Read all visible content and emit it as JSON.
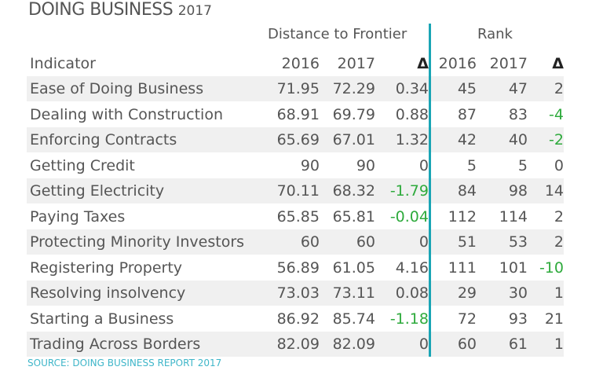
{
  "title": {
    "main": "DOING BUSINESS",
    "year": "2017"
  },
  "groups": {
    "dtf": "Distance to Frontier",
    "rank": "Rank"
  },
  "header": {
    "indicator": "Indicator",
    "dtf_2016": "2016",
    "dtf_2017": "2017",
    "dtf_delta": "Δ",
    "rank_2016": "2016",
    "rank_2017": "2017",
    "rank_delta": "Δ"
  },
  "colors": {
    "divider": "#1aa5b5",
    "negative": "#2eaa3c",
    "source": "#3fb6c9",
    "row_alt": "#f0f0f0"
  },
  "source": "SOURCE: DOING BUSINESS REPORT 2017",
  "chart_data": {
    "type": "table",
    "columns": [
      "Indicator",
      "DTF 2016",
      "DTF 2017",
      "DTF Δ",
      "Rank 2016",
      "Rank 2017",
      "Rank Δ"
    ],
    "rows": [
      {
        "indicator": "Ease of Doing Business",
        "dtf_2016": "71.95",
        "dtf_2017": "72.29",
        "dtf_delta": "0.34",
        "rank_2016": "45",
        "rank_2017": "47",
        "rank_delta": "2"
      },
      {
        "indicator": "Dealing with Construction",
        "dtf_2016": "68.91",
        "dtf_2017": "69.79",
        "dtf_delta": "0.88",
        "rank_2016": "87",
        "rank_2017": "83",
        "rank_delta": "-4"
      },
      {
        "indicator": "Enforcing Contracts",
        "dtf_2016": "65.69",
        "dtf_2017": "67.01",
        "dtf_delta": "1.32",
        "rank_2016": "42",
        "rank_2017": "40",
        "rank_delta": "-2"
      },
      {
        "indicator": "Getting Credit",
        "dtf_2016": "90",
        "dtf_2017": "90",
        "dtf_delta": "0",
        "rank_2016": "5",
        "rank_2017": "5",
        "rank_delta": "0"
      },
      {
        "indicator": "Getting Electricity",
        "dtf_2016": "70.11",
        "dtf_2017": "68.32",
        "dtf_delta": "-1.79",
        "rank_2016": "84",
        "rank_2017": "98",
        "rank_delta": "14"
      },
      {
        "indicator": "Paying Taxes",
        "dtf_2016": "65.85",
        "dtf_2017": "65.81",
        "dtf_delta": "-0.04",
        "rank_2016": "112",
        "rank_2017": "114",
        "rank_delta": "2"
      },
      {
        "indicator": "Protecting Minority Investors",
        "dtf_2016": "60",
        "dtf_2017": "60",
        "dtf_delta": "0",
        "rank_2016": "51",
        "rank_2017": "53",
        "rank_delta": "2"
      },
      {
        "indicator": "Registering Property",
        "dtf_2016": "56.89",
        "dtf_2017": "61.05",
        "dtf_delta": "4.16",
        "rank_2016": "111",
        "rank_2017": "101",
        "rank_delta": "-10"
      },
      {
        "indicator": "Resolving insolvency",
        "dtf_2016": "73.03",
        "dtf_2017": "73.11",
        "dtf_delta": "0.08",
        "rank_2016": "29",
        "rank_2017": "30",
        "rank_delta": "1"
      },
      {
        "indicator": "Starting a Business",
        "dtf_2016": "86.92",
        "dtf_2017": "85.74",
        "dtf_delta": "-1.18",
        "rank_2016": "72",
        "rank_2017": "93",
        "rank_delta": "21"
      },
      {
        "indicator": "Trading Across Borders",
        "dtf_2016": "82.09",
        "dtf_2017": "82.09",
        "dtf_delta": "0",
        "rank_2016": "60",
        "rank_2017": "61",
        "rank_delta": "1"
      }
    ]
  }
}
